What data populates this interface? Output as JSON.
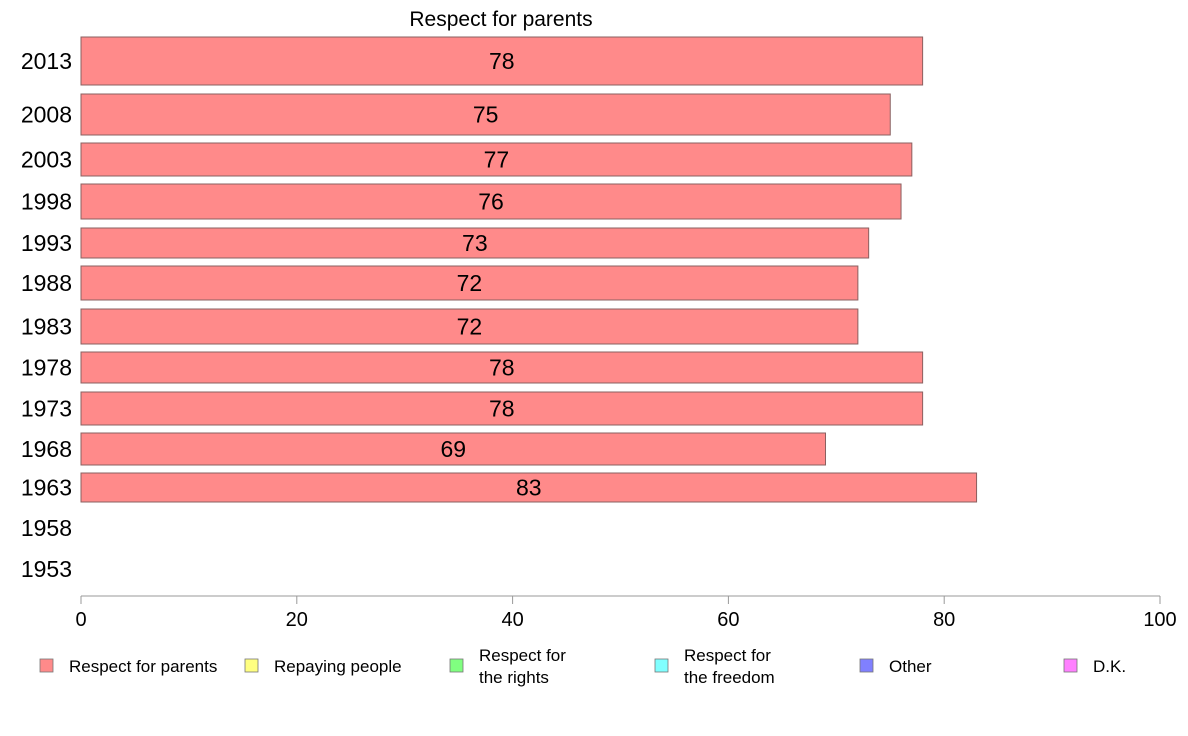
{
  "chart_data": {
    "type": "bar",
    "orientation": "horizontal",
    "title": "Respect for parents",
    "categories": [
      "2013",
      "2008",
      "2003",
      "1998",
      "1993",
      "1988",
      "1983",
      "1978",
      "1973",
      "1968",
      "1963",
      "1958",
      "1953"
    ],
    "series": [
      {
        "name": "Respect for parents",
        "color": "#ff8a8a",
        "values": [
          78,
          75,
          77,
          76,
          73,
          72,
          72,
          78,
          78,
          69,
          83,
          null,
          null
        ]
      }
    ],
    "data_labels": [
      "78",
      "75",
      "77",
      "76",
      "73",
      "72",
      "72",
      "78",
      "78",
      "69",
      "83",
      "",
      ""
    ],
    "xlim": [
      0,
      100
    ],
    "x_ticks": [
      0,
      20,
      40,
      60,
      80,
      100
    ],
    "x_tick_labels": [
      "0",
      "20",
      "40",
      "60",
      "80",
      "100"
    ],
    "grid": false,
    "legend_position": "bottom",
    "legend": [
      {
        "lines": [
          "Respect for parents"
        ],
        "color": "#ff8a8a"
      },
      {
        "lines": [
          "Repaying people"
        ],
        "color": "#ffff80"
      },
      {
        "lines": [
          "Respect for",
          "the rights"
        ],
        "color": "#80ff80"
      },
      {
        "lines": [
          "Respect for",
          "the freedom"
        ],
        "color": "#80ffff"
      },
      {
        "lines": [
          "Other"
        ],
        "color": "#8080ff"
      },
      {
        "lines": [
          "D.K."
        ],
        "color": "#ff80ff"
      }
    ]
  }
}
